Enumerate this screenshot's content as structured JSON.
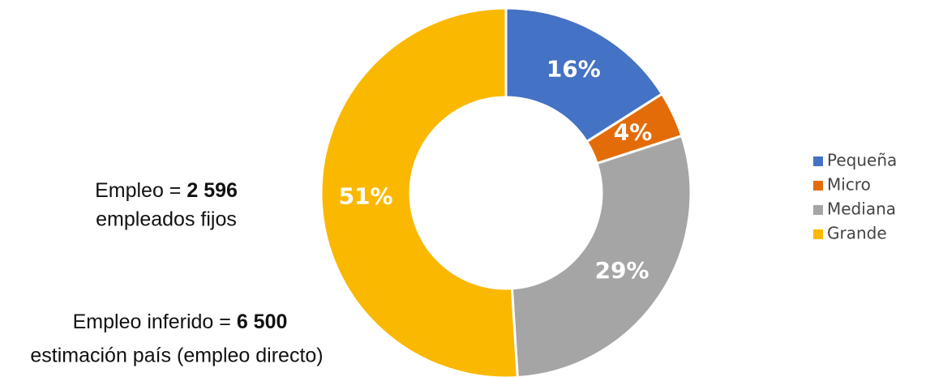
{
  "chart_data": {
    "type": "donut",
    "categories": [
      "Pequeña",
      "Micro",
      "Mediana",
      "Grande"
    ],
    "values": [
      16,
      4,
      29,
      51
    ],
    "value_labels": [
      "16%",
      "4%",
      "29%",
      "51%"
    ],
    "colors": [
      "#4472c4",
      "#e36c09",
      "#a5a5a5",
      "#fab800"
    ],
    "legend": "right",
    "annotations": [
      {
        "prefix": "Empleo = ",
        "value": "2 596",
        "suffix": "empleados fijos"
      },
      {
        "prefix": "Empleo inferido = ",
        "value": "6 500",
        "suffix": "estimación país (empleo directo)"
      }
    ]
  }
}
